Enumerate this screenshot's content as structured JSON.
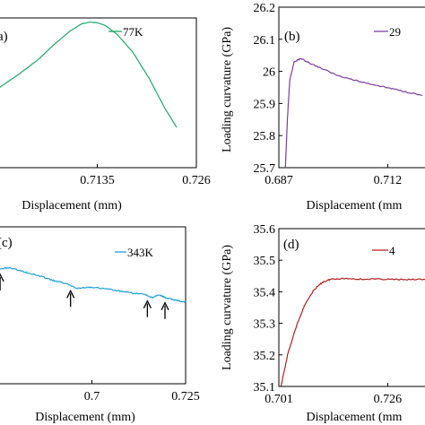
{
  "chart_data": [
    {
      "type": "line",
      "panel_label": "(a)",
      "panel_label_visible": "a)",
      "legend_label": "77K",
      "color": "#1aa86a",
      "xlabel": "Displacement (mm)",
      "ylabel": "",
      "x_ticks": [
        "0.7135",
        "0.726"
      ],
      "x_tick_values": [
        0.7135,
        0.726
      ],
      "xlim": [
        0.701,
        0.726
      ],
      "ylim": [
        0,
        1
      ],
      "series": [
        {
          "name": "77K",
          "x": [
            0.701,
            0.7035,
            0.706,
            0.708,
            0.71,
            0.7115,
            0.7125,
            0.7135,
            0.7145,
            0.716,
            0.718,
            0.72,
            0.722,
            0.7235
          ],
          "y": [
            0.53,
            0.62,
            0.72,
            0.82,
            0.91,
            0.96,
            0.972,
            0.968,
            0.95,
            0.89,
            0.77,
            0.6,
            0.4,
            0.27
          ]
        }
      ]
    },
    {
      "type": "line",
      "panel_label": "(b)",
      "legend_label": "29",
      "color": "#7c3fa0",
      "xlabel": "Displacement (mm",
      "ylabel": "Loading curvature (GPa)",
      "y_ticks": [
        "25.7",
        "25.8",
        "25.9",
        "26",
        "26.1",
        "26.2"
      ],
      "y_tick_values": [
        25.7,
        25.8,
        25.9,
        26.0,
        26.1,
        26.2
      ],
      "x_ticks": [
        "0.687",
        "0.712"
      ],
      "x_tick_values": [
        0.687,
        0.712
      ],
      "xlim": [
        0.687,
        0.722
      ],
      "ylim": [
        25.7,
        26.2
      ],
      "series": [
        {
          "name": "29",
          "x": [
            0.6885,
            0.689,
            0.6895,
            0.6905,
            0.692,
            0.695,
            0.7,
            0.705,
            0.71,
            0.715,
            0.72
          ],
          "y": [
            25.7,
            25.86,
            25.97,
            26.03,
            26.04,
            26.02,
            25.99,
            25.97,
            25.955,
            25.94,
            25.925
          ]
        }
      ]
    },
    {
      "type": "line",
      "panel_label": "(c)",
      "panel_label_visible": "(c)",
      "legend_label": "343K",
      "color": "#1ea0d8",
      "xlabel": "Displacement (mm)",
      "ylabel": "",
      "x_ticks": [
        "0.7",
        "0.725"
      ],
      "x_tick_values": [
        0.7,
        0.725
      ],
      "xlim": [
        0.675,
        0.725
      ],
      "ylim": [
        0,
        1
      ],
      "series": [
        {
          "name": "343K",
          "x": [
            0.675,
            0.678,
            0.681,
            0.684,
            0.687,
            0.69,
            0.693,
            0.696,
            0.7,
            0.705,
            0.71,
            0.714,
            0.716,
            0.718,
            0.72,
            0.722,
            0.725
          ],
          "y": [
            0.73,
            0.74,
            0.72,
            0.7,
            0.68,
            0.655,
            0.64,
            0.61,
            0.615,
            0.6,
            0.58,
            0.57,
            0.55,
            0.565,
            0.545,
            0.535,
            0.52
          ]
        }
      ],
      "arrows_at_x": [
        0.6755,
        0.6943,
        0.7148,
        0.7195
      ]
    },
    {
      "type": "line",
      "panel_label": "(d)",
      "legend_label": "4",
      "color": "#b22222",
      "xlabel": "Displacement (mm",
      "ylabel": "Loading curvature (GPa)",
      "y_ticks": [
        "35.1",
        "35.2",
        "35.3",
        "35.4",
        "35.5",
        "35.6"
      ],
      "y_tick_values": [
        35.1,
        35.2,
        35.3,
        35.4,
        35.5,
        35.6
      ],
      "x_ticks": [
        "0.701",
        "0.726"
      ],
      "x_tick_values": [
        0.701,
        0.726
      ],
      "xlim": [
        0.701,
        0.736
      ],
      "ylim": [
        35.1,
        35.6
      ],
      "series": [
        {
          "name": "4",
          "x": [
            0.7015,
            0.703,
            0.705,
            0.707,
            0.709,
            0.711,
            0.713,
            0.716,
            0.72,
            0.725,
            0.73,
            0.736
          ],
          "y": [
            35.1,
            35.2,
            35.29,
            35.36,
            35.405,
            35.43,
            35.44,
            35.442,
            35.44,
            35.44,
            35.438,
            35.44
          ]
        }
      ]
    }
  ]
}
